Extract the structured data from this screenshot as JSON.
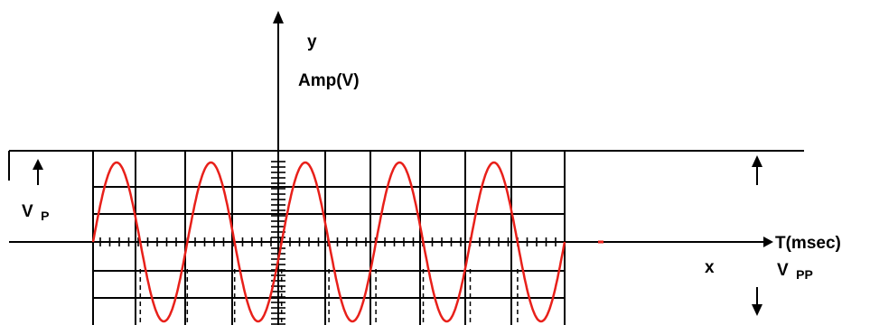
{
  "diagram": {
    "labels": {
      "y_axis": "y",
      "amplitude": "Amp(V)",
      "time_axis": "T(msec)",
      "x_axis": "x",
      "v_peak_main": "V",
      "v_peak_sub": "P",
      "v_pp_main": "V",
      "v_pp_sub": "PP"
    },
    "waveform": {
      "shape": "sine",
      "cycles_visible": 5,
      "color": "#e8201a"
    },
    "colors": {
      "lines": "#000000",
      "wave": "#e8201a",
      "background": "#ffffff"
    }
  }
}
